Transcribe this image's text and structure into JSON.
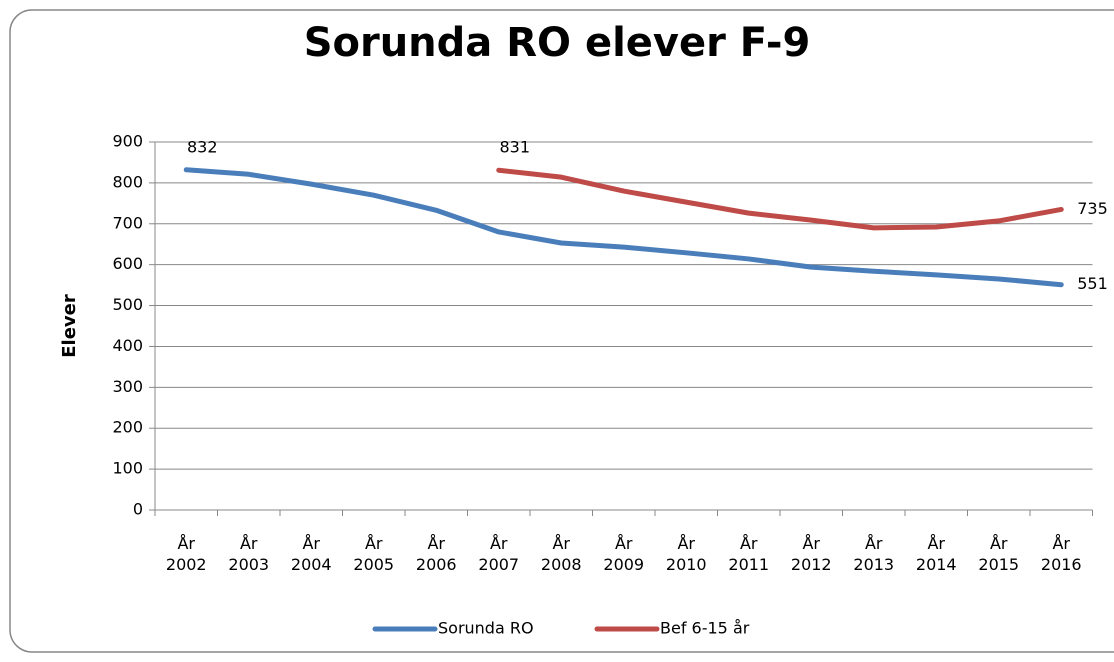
{
  "chart_data": {
    "type": "line",
    "title": "Sorunda RO elever F-9",
    "y_label": "Elever",
    "categories": [
      "År 2002",
      "År 2003",
      "År 2004",
      "År 2005",
      "År 2006",
      "År 2007",
      "År 2008",
      "År 2009",
      "År 2010",
      "År 2011",
      "År 2012",
      "År 2013",
      "År 2014",
      "År 2015",
      "År 2016"
    ],
    "series": [
      {
        "name": "Sorunda RO",
        "color": "#4a7ebb",
        "values": [
          832,
          821,
          797,
          770,
          733,
          680,
          653,
          643,
          629,
          614,
          594,
          584,
          575,
          565,
          551
        ],
        "value_labels": [
          "832",
          null,
          null,
          null,
          null,
          null,
          null,
          null,
          null,
          null,
          null,
          null,
          null,
          null,
          "551"
        ]
      },
      {
        "name": "Bef 6-15 år",
        "color": "#be4b48",
        "values": [
          null,
          null,
          null,
          null,
          null,
          831,
          814,
          780,
          753,
          726,
          709,
          690,
          692,
          707,
          735
        ],
        "value_labels": [
          null,
          null,
          null,
          null,
          null,
          "831",
          null,
          null,
          null,
          null,
          null,
          null,
          null,
          null,
          "735"
        ]
      }
    ],
    "ylim": [
      0,
      900
    ],
    "yticks": [
      0,
      100,
      200,
      300,
      400,
      500,
      600,
      700,
      800,
      900
    ],
    "grid": true,
    "legend": "bottom"
  }
}
